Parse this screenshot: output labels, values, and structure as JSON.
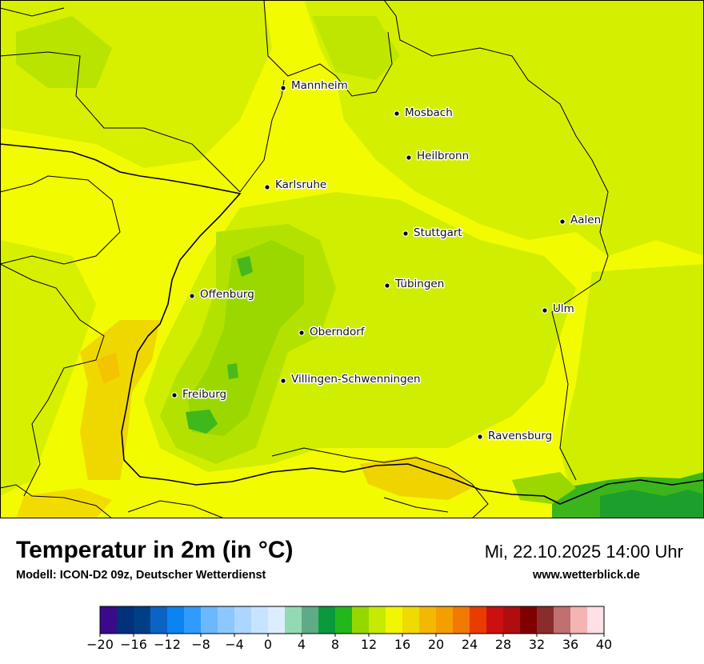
{
  "map": {
    "title": "Temperatur in 2m (in °C)",
    "subtitle": "Modell: ICON-D2 09z, Deutscher Wetterdienst",
    "datetime": "Mi, 22.10.2025 14:00 Uhr",
    "website": "www.wetterblick.de"
  },
  "cities": [
    {
      "name": "Mannheim"
    },
    {
      "name": "Mosbach"
    },
    {
      "name": "Heilbronn"
    },
    {
      "name": "Karlsruhe"
    },
    {
      "name": "Aalen"
    },
    {
      "name": "Stuttgart"
    },
    {
      "name": "Tübingen"
    },
    {
      "name": "Offenburg"
    },
    {
      "name": "Ulm"
    },
    {
      "name": "Oberndorf"
    },
    {
      "name": "Villingen-Schwenningen"
    },
    {
      "name": "Freiburg"
    },
    {
      "name": "Ravensburg"
    }
  ],
  "legend": {
    "colors": [
      "#3a0a8a",
      "#00317a",
      "#003f86",
      "#0b63c4",
      "#0a84f2",
      "#2e9cff",
      "#6cb8ff",
      "#8cc8ff",
      "#aad6ff",
      "#c7e4ff",
      "#dcedff",
      "#93dab4",
      "#5fab86",
      "#0a9a3c",
      "#22b81c",
      "#95d800",
      "#c6ea00",
      "#f2f600",
      "#f0da00",
      "#f4b800",
      "#f59e00",
      "#f27a00",
      "#e93c00",
      "#cc1010",
      "#b00e0e",
      "#800000",
      "#8a2c2c",
      "#c07070",
      "#f4b4b4",
      "#ffe0e6"
    ],
    "ticks": [
      "−20",
      "−16",
      "−12",
      "−8",
      "−4",
      "0",
      "4",
      "8",
      "12",
      "16",
      "20",
      "24",
      "28",
      "32",
      "36",
      "40"
    ]
  },
  "colors": {
    "base": "#f4ff00",
    "lime": "#d8f200",
    "green_light": "#b6e400",
    "green_mid": "#94d600",
    "green_dark": "#3cb81c",
    "warm": "#f2d800",
    "warm_orange": "#f4c200"
  }
}
